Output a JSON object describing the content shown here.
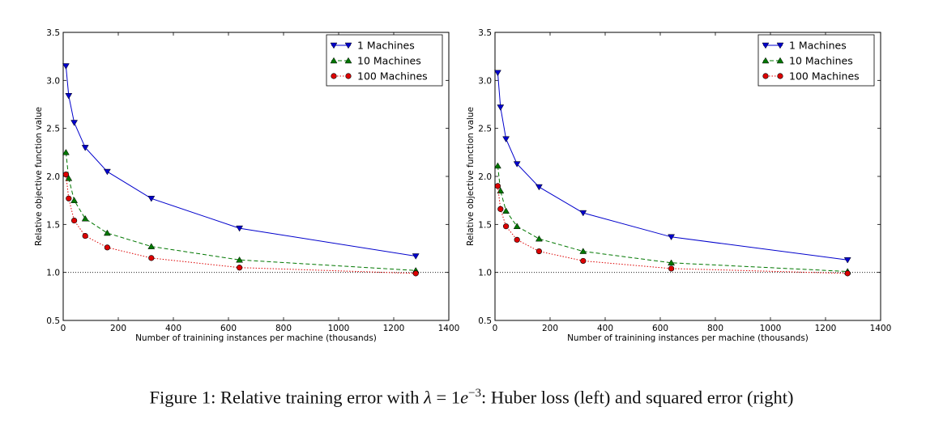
{
  "chart_data": [
    {
      "type": "line",
      "xlabel": "Number of trainining instances per machine (thousands)",
      "ylabel": "Relative objective function value",
      "xlim": [
        0,
        1400
      ],
      "ylim": [
        0.5,
        3.5
      ],
      "xticks": [
        0,
        200,
        400,
        600,
        800,
        1000,
        1200,
        1400
      ],
      "yticks": [
        0.5,
        1.0,
        1.5,
        2.0,
        2.5,
        3.0,
        3.5
      ],
      "reference_line": 1.0,
      "grid": false,
      "legend": "top-right",
      "series": [
        {
          "name": "1 Machines",
          "color": "#0000cc",
          "style": "solid",
          "marker": "triangle-down",
          "x": [
            10,
            20,
            40,
            80,
            160,
            320,
            640,
            1280
          ],
          "y": [
            3.15,
            2.84,
            2.56,
            2.3,
            2.05,
            1.77,
            1.46,
            1.17
          ]
        },
        {
          "name": "10 Machines",
          "color": "#007700",
          "style": "dashed",
          "marker": "triangle-up",
          "x": [
            10,
            20,
            40,
            80,
            160,
            320,
            640,
            1280
          ],
          "y": [
            2.25,
            1.98,
            1.75,
            1.56,
            1.41,
            1.27,
            1.13,
            1.02
          ]
        },
        {
          "name": "100 Machines",
          "color": "#dd0000",
          "style": "dotted",
          "marker": "circle",
          "x": [
            10,
            20,
            40,
            80,
            160,
            320,
            640,
            1280
          ],
          "y": [
            2.02,
            1.77,
            1.54,
            1.38,
            1.26,
            1.15,
            1.05,
            0.99
          ]
        }
      ]
    },
    {
      "type": "line",
      "xlabel": "Number of trainining instances per machine (thousands)",
      "ylabel": "Relative objective function value",
      "xlim": [
        0,
        1400
      ],
      "ylim": [
        0.5,
        3.5
      ],
      "xticks": [
        0,
        200,
        400,
        600,
        800,
        1000,
        1200,
        1400
      ],
      "yticks": [
        0.5,
        1.0,
        1.5,
        2.0,
        2.5,
        3.0,
        3.5
      ],
      "reference_line": 1.0,
      "grid": false,
      "legend": "top-right",
      "series": [
        {
          "name": "1 Machines",
          "color": "#0000cc",
          "style": "solid",
          "marker": "triangle-down",
          "x": [
            10,
            20,
            40,
            80,
            160,
            320,
            640,
            1280
          ],
          "y": [
            3.08,
            2.72,
            2.39,
            2.13,
            1.89,
            1.62,
            1.37,
            1.13
          ]
        },
        {
          "name": "10 Machines",
          "color": "#007700",
          "style": "dashed",
          "marker": "triangle-up",
          "x": [
            10,
            20,
            40,
            80,
            160,
            320,
            640,
            1280
          ],
          "y": [
            2.11,
            1.85,
            1.64,
            1.48,
            1.35,
            1.22,
            1.1,
            1.01
          ]
        },
        {
          "name": "100 Machines",
          "color": "#dd0000",
          "style": "dotted",
          "marker": "circle",
          "x": [
            10,
            20,
            40,
            80,
            160,
            320,
            640,
            1280
          ],
          "y": [
            1.9,
            1.66,
            1.48,
            1.34,
            1.22,
            1.12,
            1.04,
            0.99
          ]
        }
      ]
    }
  ],
  "caption": {
    "label": "Figure 1:",
    "before": "Relative training error with",
    "lambda_symbol": "λ",
    "equals": "= 1",
    "e_symbol": "e",
    "exponent": "−3",
    "after": ": Huber loss (left) and squared error (right)"
  }
}
